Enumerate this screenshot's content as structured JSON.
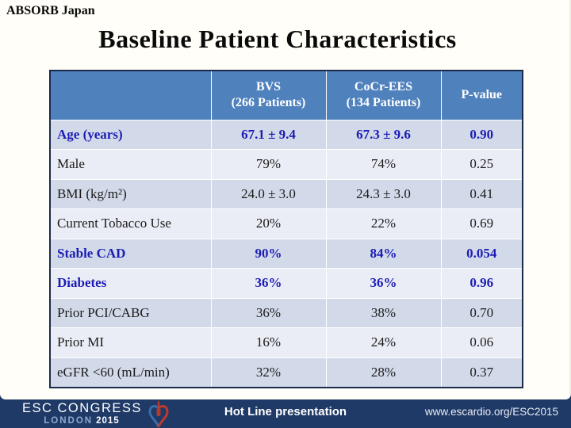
{
  "slide": {
    "kicker": "ABSORB Japan",
    "title": "Baseline Patient Characteristics"
  },
  "colors": {
    "header_bg": "#4F81BD",
    "band_dark": "#D2DAE9",
    "band_light": "#EAEDF5",
    "highlight_text": "#1C1CB5",
    "footer_bg": "#1F3A67"
  },
  "table": {
    "header": {
      "empty": "",
      "bvs": {
        "line1": "BVS",
        "line2": "(266 Patients)"
      },
      "cocr": {
        "line1": "CoCr-EES",
        "line2": "(134 Patients)"
      },
      "pvalue": {
        "line1": "P-value",
        "line2": ""
      }
    },
    "rows": [
      {
        "label": "Age (years)",
        "bvs": "67.1 ± 9.4",
        "cocr": "67.3 ± 9.6",
        "p": "0.90",
        "highlight": true
      },
      {
        "label": "Male",
        "bvs": "79%",
        "cocr": "74%",
        "p": "0.25",
        "highlight": false
      },
      {
        "label": "BMI (kg/m²)",
        "bvs": "24.0 ± 3.0",
        "cocr": "24.3 ± 3.0",
        "p": "0.41",
        "highlight": false
      },
      {
        "label": "Current Tobacco Use",
        "bvs": "20%",
        "cocr": "22%",
        "p": "0.69",
        "highlight": false
      },
      {
        "label": "Stable CAD",
        "bvs": "90%",
        "cocr": "84%",
        "p": "0.054",
        "highlight": true
      },
      {
        "label": "Diabetes",
        "bvs": "36%",
        "cocr": "36%",
        "p": "0.96",
        "highlight": true
      },
      {
        "label": "Prior PCI/CABG",
        "bvs": "36%",
        "cocr": "38%",
        "p": "0.70",
        "highlight": false
      },
      {
        "label": "Prior MI",
        "bvs": "16%",
        "cocr": "24%",
        "p": "0.06",
        "highlight": false
      },
      {
        "label": "eGFR <60 (mL/min)",
        "bvs": "32%",
        "cocr": "28%",
        "p": "0.37",
        "highlight": false
      }
    ]
  },
  "footer": {
    "congress": "ESC CONGRESS",
    "city": "LONDON",
    "year": "2015",
    "logo": "esc-heart-logo",
    "center_text": "Hot Line presentation",
    "url": "www.escardio.org/ESC2015"
  }
}
